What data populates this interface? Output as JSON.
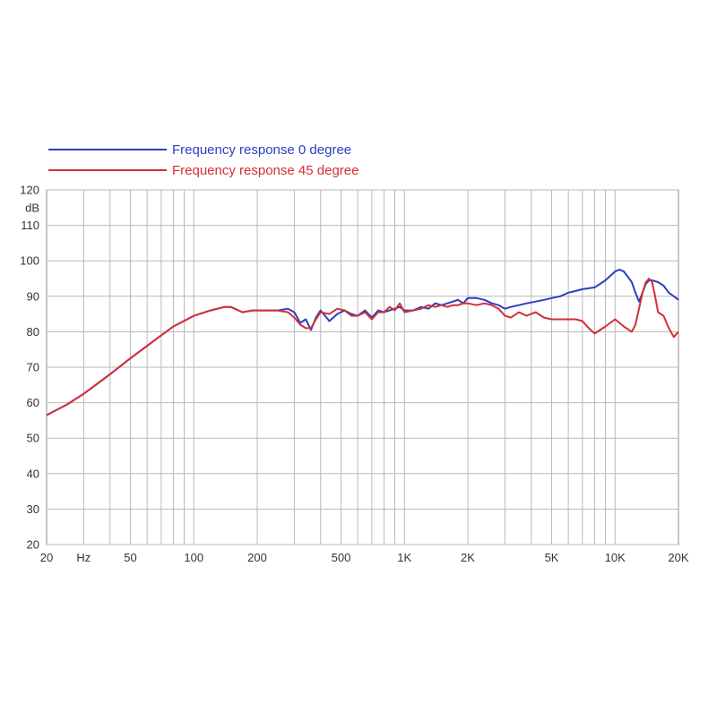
{
  "chart_data": {
    "type": "line",
    "xscale": "log",
    "xlim": [
      20,
      20000
    ],
    "ylim": [
      20,
      120
    ],
    "ylabel": "dB",
    "grid": true,
    "legend_position": "top-left",
    "x_ticks": [
      {
        "value": 20,
        "label": "20"
      },
      {
        "value": 30,
        "label": "Hz"
      },
      {
        "value": 50,
        "label": "50"
      },
      {
        "value": 100,
        "label": "100"
      },
      {
        "value": 200,
        "label": "200"
      },
      {
        "value": 500,
        "label": "500"
      },
      {
        "value": 1000,
        "label": "1K"
      },
      {
        "value": 2000,
        "label": "2K"
      },
      {
        "value": 5000,
        "label": "5K"
      },
      {
        "value": 10000,
        "label": "10K"
      },
      {
        "value": 20000,
        "label": "20K"
      }
    ],
    "y_ticks": [
      20,
      30,
      40,
      50,
      60,
      70,
      80,
      90,
      100,
      110,
      120
    ],
    "series": [
      {
        "name": "Frequency response 0 degree",
        "color": "#2b3fc0",
        "x": [
          20,
          25,
          30,
          40,
          50,
          60,
          70,
          80,
          100,
          120,
          140,
          150,
          170,
          190,
          220,
          250,
          280,
          300,
          320,
          340,
          360,
          380,
          400,
          440,
          480,
          520,
          560,
          600,
          650,
          700,
          750,
          800,
          850,
          900,
          950,
          1000,
          1100,
          1200,
          1300,
          1400,
          1500,
          1600,
          1700,
          1800,
          1900,
          2000,
          2200,
          2400,
          2600,
          2800,
          3000,
          3200,
          3500,
          3800,
          4200,
          4600,
          5000,
          5500,
          6000,
          6500,
          7000,
          8000,
          9000,
          10000,
          10500,
          11000,
          11500,
          12000,
          12500,
          13000,
          13500,
          14000,
          14500,
          15000,
          16000,
          17000,
          18000,
          19000,
          20000
        ],
        "y": [
          56.5,
          59.5,
          62.5,
          68,
          72.5,
          76,
          79,
          81.5,
          84.5,
          86,
          87,
          87,
          85.5,
          86,
          86,
          86,
          86.5,
          85.5,
          82.5,
          83.5,
          80.5,
          84,
          86,
          83,
          85,
          86,
          85,
          84.5,
          86,
          84,
          86,
          85.5,
          86,
          86.5,
          87,
          86,
          86,
          87,
          86.5,
          88,
          87.5,
          88,
          88.5,
          89,
          88,
          89.5,
          89.5,
          89,
          88,
          87.5,
          86.5,
          87,
          87.5,
          88,
          88.5,
          89,
          89.5,
          90,
          91,
          91.5,
          92,
          92.5,
          94.5,
          97,
          97.5,
          97,
          95.5,
          94,
          91,
          88.5,
          91,
          93.5,
          94.5,
          94.5,
          94,
          93,
          91,
          90,
          89
        ]
      },
      {
        "name": "Frequency response 45 degree",
        "color": "#d42f36",
        "x": [
          20,
          25,
          30,
          40,
          50,
          60,
          70,
          80,
          100,
          120,
          140,
          150,
          170,
          190,
          220,
          250,
          280,
          300,
          320,
          340,
          360,
          380,
          400,
          440,
          480,
          520,
          560,
          600,
          650,
          700,
          750,
          800,
          850,
          900,
          950,
          1000,
          1100,
          1200,
          1300,
          1400,
          1500,
          1600,
          1700,
          1800,
          1900,
          2000,
          2200,
          2400,
          2600,
          2800,
          3000,
          3200,
          3500,
          3800,
          4200,
          4600,
          5000,
          5500,
          6000,
          6500,
          7000,
          7500,
          8000,
          8500,
          9000,
          10000,
          11000,
          12000,
          12500,
          13000,
          13500,
          14000,
          14500,
          15000,
          15500,
          16000,
          17000,
          18000,
          19000,
          20000
        ],
        "y": [
          56.5,
          59.5,
          62.5,
          68,
          72.5,
          76,
          79,
          81.5,
          84.5,
          86,
          87,
          87,
          85.5,
          86,
          86,
          86,
          85.5,
          84,
          82,
          81,
          81,
          83.5,
          85.5,
          85,
          86.5,
          86,
          84.5,
          84.5,
          85.5,
          83.5,
          85.5,
          85.5,
          87,
          86,
          88,
          85.5,
          86,
          86.5,
          87.5,
          87,
          87.5,
          87,
          87.5,
          87.5,
          88,
          88,
          87.5,
          88,
          87.5,
          86.5,
          84.5,
          84,
          85.5,
          84.5,
          85.5,
          84,
          83.5,
          83.5,
          83.5,
          83.5,
          83,
          81,
          79.5,
          80.5,
          81.5,
          83.5,
          81.5,
          80,
          82,
          86.5,
          91,
          94,
          95,
          94,
          90,
          85.5,
          84.5,
          81,
          78.5,
          80
        ]
      }
    ]
  }
}
